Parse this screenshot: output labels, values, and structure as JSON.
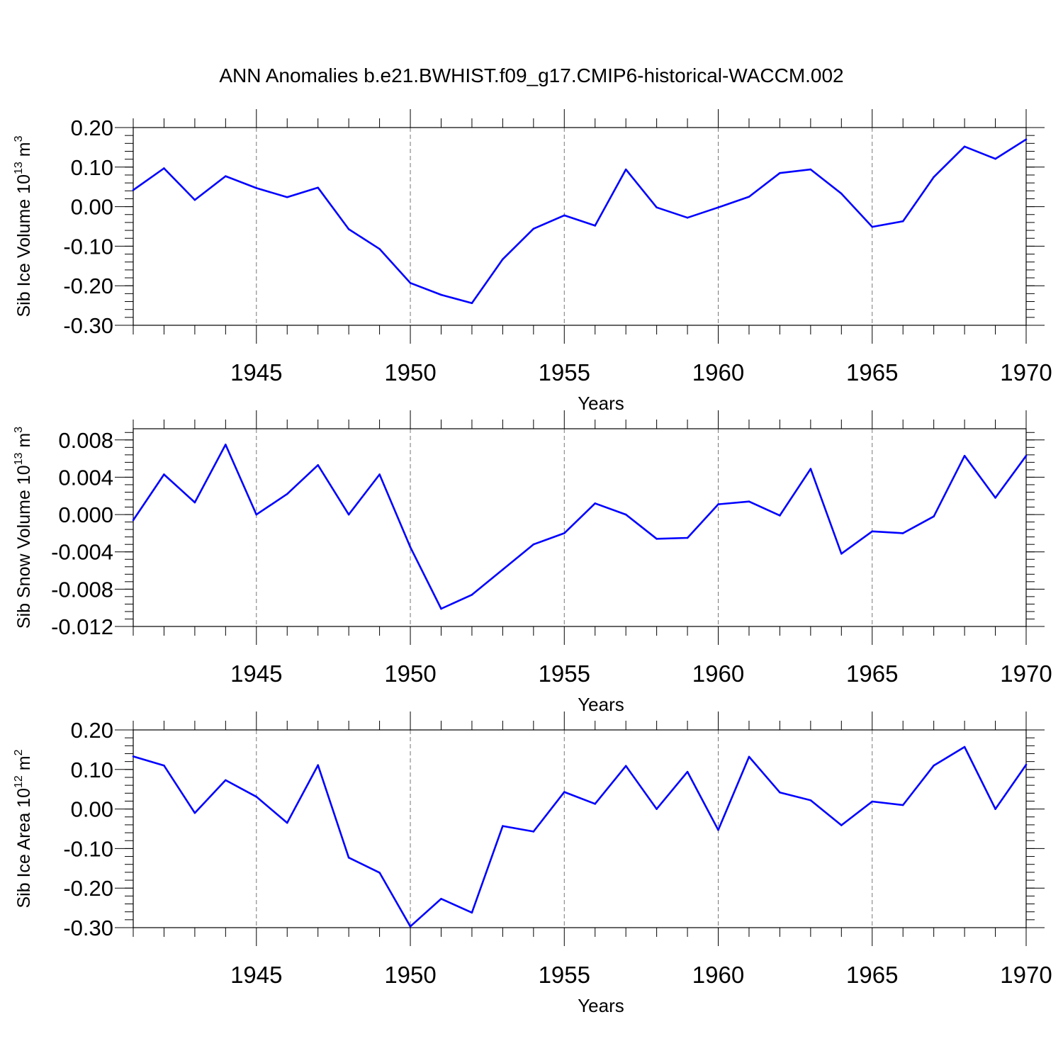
{
  "title": "ANN Anomalies b.e21.BWHIST.f09_g17.CMIP6-historical-WACCM.002",
  "chart_data": [
    {
      "type": "line",
      "ylabel_main": "Sib Ice Volume 10",
      "ylabel_exp": "13",
      "ylabel_unit": " m",
      "ylabel_unit_exp": "3",
      "xlabel": "Years",
      "xlim": [
        1941,
        1970
      ],
      "ylim": [
        -0.3,
        0.2
      ],
      "yticks": [
        0.2,
        0.1,
        0.0,
        -0.1,
        -0.2,
        -0.3
      ],
      "ytick_labels": [
        "0.20",
        "0.10",
        "0.00",
        "-0.10",
        "-0.20",
        "-0.30"
      ],
      "yminor_step": 0.02,
      "xtick_labels": [
        "1945",
        "1950",
        "1955",
        "1960",
        "1965",
        "1970"
      ],
      "line_color": "#0000ff",
      "x": [
        1941,
        1942,
        1943,
        1944,
        1945,
        1946,
        1947,
        1948,
        1949,
        1950,
        1951,
        1952,
        1953,
        1954,
        1955,
        1956,
        1957,
        1958,
        1959,
        1960,
        1961,
        1962,
        1963,
        1964,
        1965,
        1966,
        1967,
        1968,
        1969,
        1970
      ],
      "values": [
        0.042,
        0.097,
        0.017,
        0.077,
        0.047,
        0.024,
        0.048,
        -0.057,
        -0.107,
        -0.193,
        -0.223,
        -0.244,
        -0.133,
        -0.056,
        -0.022,
        -0.048,
        0.094,
        -0.002,
        -0.028,
        -0.002,
        0.025,
        0.085,
        0.094,
        0.033,
        -0.051,
        -0.037,
        0.075,
        0.152,
        0.121,
        0.17
      ]
    },
    {
      "type": "line",
      "ylabel_main": "Sib Snow Volume 10",
      "ylabel_exp": "13",
      "ylabel_unit": " m",
      "ylabel_unit_exp": "3",
      "xlabel": "Years",
      "xlim": [
        1941,
        1970
      ],
      "ylim": [
        -0.012,
        0.0092
      ],
      "yticks": [
        0.008,
        0.004,
        0.0,
        -0.004,
        -0.008,
        -0.012
      ],
      "ytick_labels": [
        "0.008",
        "0.004",
        "0.000",
        "-0.004",
        "-0.008",
        "-0.012"
      ],
      "yminor_step": 0.0008,
      "xtick_labels": [
        "1945",
        "1950",
        "1955",
        "1960",
        "1965",
        "1970"
      ],
      "line_color": "#0000ff",
      "x": [
        1941,
        1942,
        1943,
        1944,
        1945,
        1946,
        1947,
        1948,
        1949,
        1950,
        1951,
        1952,
        1953,
        1954,
        1955,
        1956,
        1957,
        1958,
        1959,
        1960,
        1961,
        1962,
        1963,
        1964,
        1965,
        1966,
        1967,
        1968,
        1969,
        1970
      ],
      "values": [
        -0.0006,
        0.0043,
        0.0013,
        0.0075,
        0.0,
        0.0022,
        0.0053,
        0.0,
        0.0043,
        -0.0035,
        -0.0101,
        -0.0086,
        -0.0059,
        -0.0032,
        -0.002,
        0.0012,
        0.0,
        -0.0026,
        -0.0025,
        0.0011,
        0.0014,
        -0.0001,
        0.0049,
        -0.0042,
        -0.0018,
        -0.002,
        -0.0002,
        0.0063,
        0.0018,
        0.0063
      ]
    },
    {
      "type": "line",
      "ylabel_main": "Sib Ice Area 10",
      "ylabel_exp": "12",
      "ylabel_unit": " m",
      "ylabel_unit_exp": "2",
      "xlabel": "Years",
      "xlim": [
        1941,
        1970
      ],
      "ylim": [
        -0.3,
        0.2
      ],
      "yticks": [
        0.2,
        0.1,
        0.0,
        -0.1,
        -0.2,
        -0.3
      ],
      "ytick_labels": [
        "0.20",
        "0.10",
        "0.00",
        "-0.10",
        "-0.20",
        "-0.30"
      ],
      "yminor_step": 0.02,
      "xtick_labels": [
        "1945",
        "1950",
        "1955",
        "1960",
        "1965",
        "1970"
      ],
      "line_color": "#0000ff",
      "x": [
        1941,
        1942,
        1943,
        1944,
        1945,
        1946,
        1947,
        1948,
        1949,
        1950,
        1951,
        1952,
        1953,
        1954,
        1955,
        1956,
        1957,
        1958,
        1959,
        1960,
        1961,
        1962,
        1963,
        1964,
        1965,
        1966,
        1967,
        1968,
        1969,
        1970
      ],
      "values": [
        0.133,
        0.11,
        -0.01,
        0.073,
        0.031,
        -0.035,
        0.111,
        -0.123,
        -0.161,
        -0.297,
        -0.227,
        -0.262,
        -0.043,
        -0.057,
        0.043,
        0.013,
        0.109,
        0.0,
        0.094,
        -0.053,
        0.132,
        0.042,
        0.022,
        -0.041,
        0.019,
        0.01,
        0.11,
        0.157,
        0.0,
        0.112
      ]
    }
  ]
}
